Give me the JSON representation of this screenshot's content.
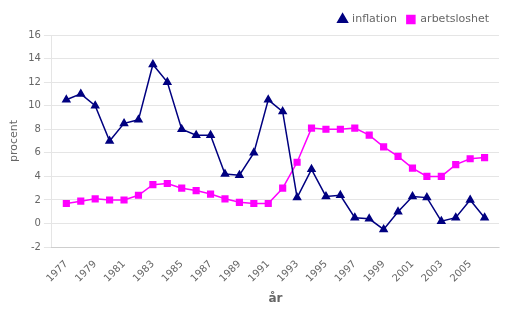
{
  "chart_data": {
    "type": "line",
    "xlabel": "år",
    "ylabel": "procent",
    "x": [
      1977,
      1978,
      1979,
      1980,
      1981,
      1982,
      1983,
      1984,
      1985,
      1986,
      1987,
      1988,
      1989,
      1990,
      1991,
      1992,
      1993,
      1994,
      1995,
      1996,
      1997,
      1998,
      1999,
      2000,
      2001,
      2002,
      2003,
      2004,
      2005,
      2006
    ],
    "series": [
      {
        "name": "inflation",
        "color": "#000080",
        "marker": "triangle",
        "values": [
          10.5,
          11.0,
          10.0,
          7.0,
          8.5,
          8.8,
          13.5,
          12.0,
          8.0,
          7.5,
          7.5,
          4.2,
          4.1,
          6.0,
          10.5,
          9.5,
          2.2,
          4.6,
          2.3,
          2.4,
          0.5,
          0.4,
          -0.5,
          1.0,
          2.3,
          2.2,
          0.2,
          0.5,
          2.0,
          0.5
        ]
      },
      {
        "name": "arbetsloshet",
        "color": "#FF00FF",
        "marker": "square",
        "values": [
          1.7,
          1.9,
          2.1,
          2.0,
          2.0,
          2.4,
          3.3,
          3.4,
          3.0,
          2.8,
          2.5,
          2.1,
          1.8,
          1.7,
          1.7,
          3.0,
          5.2,
          8.1,
          8.0,
          8.0,
          8.1,
          7.5,
          6.5,
          5.7,
          4.7,
          4.0,
          4.0,
          5.0,
          5.5,
          5.6
        ]
      }
    ],
    "xlim": [
      1976,
      2007
    ],
    "xticks": [
      1977,
      1979,
      1981,
      1983,
      1985,
      1987,
      1989,
      1991,
      1993,
      1995,
      1997,
      1999,
      2001,
      2003,
      2005
    ],
    "ylim": [
      -2,
      16
    ],
    "yticks": [
      -2,
      0,
      2,
      4,
      6,
      8,
      10,
      12,
      14,
      16
    ],
    "grid": "y",
    "legend": "upper right"
  }
}
